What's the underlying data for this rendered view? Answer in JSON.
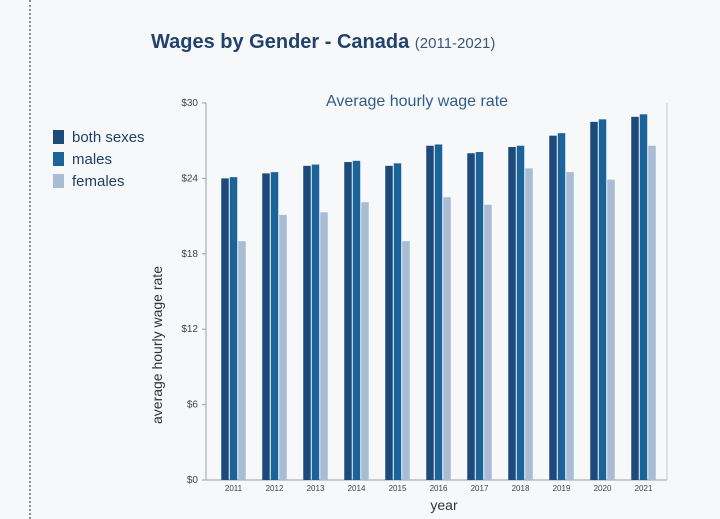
{
  "header": {
    "title": "Wages by Gender - Canada",
    "title_range": "(2011-2021)"
  },
  "chart_data": {
    "type": "bar",
    "subtitle": "Average hourly wage rate",
    "xlabel": "year",
    "ylabel": "average hourly wage rate",
    "categories": [
      "2011",
      "2012",
      "2013",
      "2014",
      "2015",
      "2016",
      "2017",
      "2018",
      "2019",
      "2020",
      "2021"
    ],
    "y_tick_labels": [
      "$0",
      "$6",
      "$12",
      "$18",
      "$24",
      "$30"
    ],
    "y_ticks": [
      0,
      6,
      12,
      18,
      24,
      30
    ],
    "ylim": [
      0,
      30
    ],
    "grid": false,
    "legend_position": "left",
    "series": [
      {
        "name": "both sexes",
        "color": "#1d4a7a",
        "values": [
          24.0,
          24.4,
          25.0,
          25.3,
          25.0,
          26.6,
          26.0,
          26.5,
          27.4,
          28.5,
          28.9
        ]
      },
      {
        "name": "males",
        "color": "#1a6499",
        "values": [
          24.1,
          24.5,
          25.1,
          25.4,
          25.2,
          26.7,
          26.1,
          26.6,
          27.6,
          28.7,
          29.1
        ]
      },
      {
        "name": "females",
        "color": "#a8bcd4",
        "values": [
          19.0,
          21.1,
          21.3,
          22.1,
          19.0,
          22.5,
          21.9,
          24.8,
          24.5,
          23.9,
          26.6
        ]
      }
    ]
  }
}
